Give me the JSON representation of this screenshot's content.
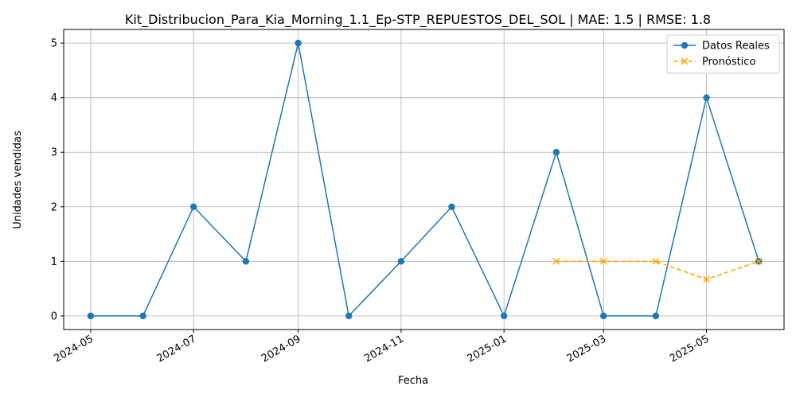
{
  "chart_data": {
    "type": "line",
    "title": "Kit_Distribucion_Para_Kia_Morning_1.1_Ep-STP_REPUESTOS_DEL_SOL | MAE: 1.5 | RMSE: 1.8",
    "xlabel": "Fecha",
    "ylabel": "Unidades vendidas",
    "x_ticks": [
      "2024-05",
      "2024-07",
      "2024-09",
      "2024-11",
      "2025-01",
      "2025-03",
      "2025-05"
    ],
    "y_ticks": [
      0,
      1,
      2,
      3,
      4,
      5
    ],
    "ylim": [
      -0.25,
      5.25
    ],
    "xlim": [
      "2024-04-15",
      "2025-06-16"
    ],
    "grid": true,
    "legend_position": "top-right",
    "series": [
      {
        "name": "Datos Reales",
        "color": "#1f77b4",
        "marker": "circle",
        "line_style": "solid",
        "x": [
          "2024-05-01",
          "2024-06-01",
          "2024-07-01",
          "2024-08-01",
          "2024-09-01",
          "2024-10-01",
          "2024-11-01",
          "2024-12-01",
          "2025-01-01",
          "2025-02-01",
          "2025-03-01",
          "2025-04-01",
          "2025-05-01",
          "2025-06-01"
        ],
        "values": [
          0,
          0,
          2,
          1,
          5,
          0,
          1,
          2,
          0,
          3,
          0,
          0,
          4,
          1
        ]
      },
      {
        "name": "Pronóstico",
        "color": "#ffa500",
        "marker": "x",
        "line_style": "dashed",
        "x": [
          "2025-02-01",
          "2025-03-01",
          "2025-04-01",
          "2025-05-01",
          "2025-06-01"
        ],
        "values": [
          1,
          1,
          1,
          0.67,
          1
        ]
      }
    ]
  }
}
